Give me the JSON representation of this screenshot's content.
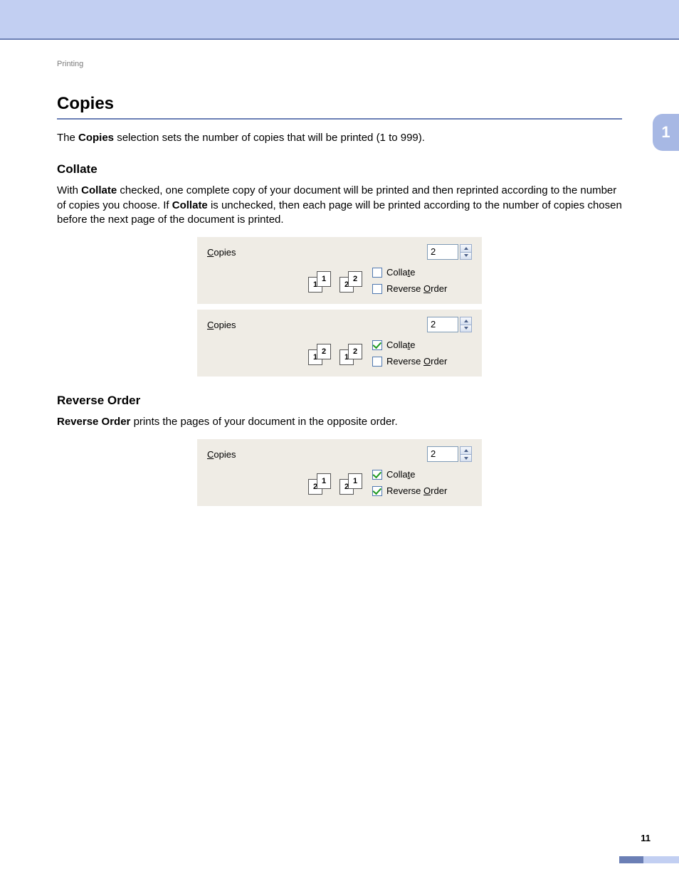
{
  "colors": {
    "band": "#c2cff2",
    "rule": "#6b7fb5",
    "dialog_bg": "#efece5",
    "input_border": "#7e9ab6",
    "check_border": "#4f78b0",
    "check_mark": "#1f9a1f",
    "tab_bg": "#a7b8e4"
  },
  "breadcrumb": "Printing",
  "chapter_tab": "1",
  "page_number": "11",
  "section": {
    "title": "Copies",
    "intro": {
      "pre": "The ",
      "bold": "Copies",
      "post": " selection sets the number of copies that will be printed (1 to 999)."
    }
  },
  "collate": {
    "title": "Collate",
    "para": {
      "p1": "With ",
      "b1": "Collate",
      "p2": " checked, one complete copy of your document will be printed and then reprinted according to the number of copies you choose. If ",
      "b2": "Collate",
      "p3": " is unchecked, then each page will be printed according to the number of copies chosen before the next page of the document is printed."
    }
  },
  "reverse": {
    "title": "Reverse Order",
    "para": {
      "b1": "Reverse Order",
      "p1": " prints the pages of your document in the opposite order."
    }
  },
  "dialogs": {
    "label_prefix": "C",
    "label_rest": "opies",
    "collate_prefix": "Colla",
    "collate_u": "t",
    "collate_suffix": "e",
    "reverse_prefix": "Reverse ",
    "reverse_u": "O",
    "reverse_suffix": "rder",
    "items": [
      {
        "copies_value": "2",
        "collate_checked": false,
        "reverse_checked": false,
        "pages": [
          {
            "back": "1",
            "front": "1"
          },
          {
            "back": "2",
            "front": "2"
          }
        ]
      },
      {
        "copies_value": "2",
        "collate_checked": true,
        "reverse_checked": false,
        "pages": [
          {
            "back": "1",
            "front": "2"
          },
          {
            "back": "1",
            "front": "2"
          }
        ]
      },
      {
        "copies_value": "2",
        "collate_checked": true,
        "reverse_checked": true,
        "pages": [
          {
            "back": "2",
            "front": "1"
          },
          {
            "back": "2",
            "front": "1"
          }
        ]
      }
    ]
  }
}
